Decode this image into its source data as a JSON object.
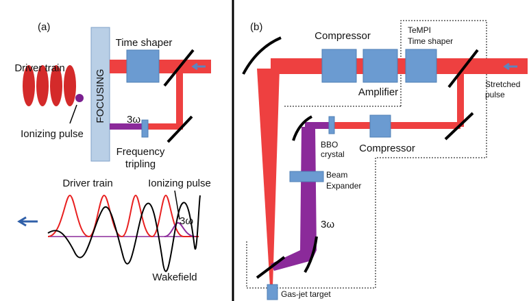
{
  "panel_a": {
    "label": "(a)",
    "driver_train": "Driver train",
    "ionizing_pulse": "Ionizing pulse",
    "focusing": "FOCUSING",
    "time_shaper": "Time shaper",
    "third_harmonic": "3ω",
    "frequency_tripling": [
      "Frequency",
      "tripling"
    ],
    "plot": {
      "driver_train": "Driver train",
      "ionizing_pulse": "Ionizing pulse",
      "third_harmonic": "3ω",
      "wakefield": "Wakefield"
    }
  },
  "panel_b": {
    "label": "(b)",
    "compressor_top": "Compressor",
    "amplifier": "Amplifier",
    "tempi_time_shaper": [
      "TeMPI",
      "Time shaper"
    ],
    "stretched_pulse": [
      "Stretched",
      "pulse"
    ],
    "bbo_crystal": [
      "BBO",
      "crystal"
    ],
    "compressor_bottom": "Compressor",
    "beam_expander": [
      "Beam",
      "Expander"
    ],
    "third_harmonic": "3ω",
    "gas_jet_target": "Gas-jet target"
  }
}
